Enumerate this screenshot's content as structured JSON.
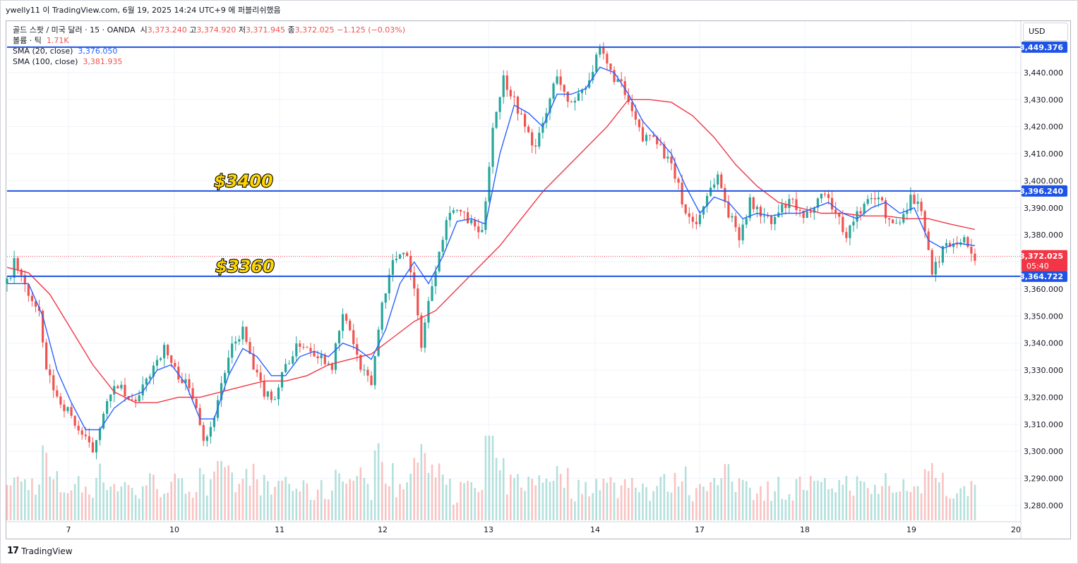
{
  "header": {
    "attribution": "ywelly11 이 TradingView.com, 6월 19, 2025 14:24 UTC+9 에 퍼블리쉬했음"
  },
  "legend": {
    "symbol": "골드 스팟 / 미국 달러 · 15 · OANDA",
    "open_label": "시",
    "open": "3,373.240",
    "high_label": "고",
    "high": "3,374.920",
    "low_label": "저",
    "low": "3,371.945",
    "close_label": "종",
    "close": "3,372.025",
    "change": "−1.125 (−0.03%)",
    "volume_label": "볼륨 · 틱",
    "volume": "1.71K",
    "sma20_label": "SMA (20, close)",
    "sma20_value": "3,376.050",
    "sma100_label": "SMA (100, close)",
    "sma100_value": "3,381.935"
  },
  "currency_button": "USD",
  "footer": {
    "brand": "TradingView"
  },
  "colors": {
    "up": "#26a69a",
    "down": "#ef5350",
    "sma20": "#2962ff",
    "sma100": "#f23645",
    "level_line": "#1e53e5",
    "current_price_tag": "#f23645",
    "level_tag": "#1e53e5",
    "annotation_fill": "#ffd600"
  },
  "chart_data": {
    "type": "candlestick",
    "instrument": "골드 스팟 / 미국 달러",
    "timeframe": "15",
    "ylim": [
      3274,
      3459
    ],
    "y_ticks": [
      3280,
      3290,
      3300,
      3310,
      3320,
      3330,
      3340,
      3350,
      3360,
      3370,
      3380,
      3390,
      3400,
      3410,
      3420,
      3430,
      3440
    ],
    "y_tick_labels": [
      "3,280.000",
      "3,290.000",
      "3,300.000",
      "3,310.000",
      "3,320.000",
      "3,330.000",
      "3,340.000",
      "3,350.000",
      "3,360.000",
      "3,370.000",
      "3,380.000",
      "3,390.000",
      "3,400.000",
      "3,410.000",
      "3,420.000",
      "3,430.000",
      "3,440.000"
    ],
    "x_ticks": [
      "7",
      "10",
      "11",
      "12",
      "13",
      "14",
      "17",
      "18",
      "19",
      "20"
    ],
    "horizontal_levels": [
      {
        "value": 3449.376,
        "label": "3,449.376"
      },
      {
        "value": 3396.24,
        "label": "3,396.240"
      },
      {
        "value": 3364.722,
        "label": "3,364.722"
      }
    ],
    "current_price": {
      "value": 3372.025,
      "label": "3,372.025",
      "countdown": "05:40"
    },
    "annotations": [
      {
        "text": "$3400",
        "price": 3396.24
      },
      {
        "text": "$3360",
        "price": 3364.722
      }
    ],
    "price_path": [
      [
        0,
        3362
      ],
      [
        2,
        3370
      ],
      [
        5,
        3361
      ],
      [
        9,
        3350
      ],
      [
        11,
        3330
      ],
      [
        14,
        3320
      ],
      [
        17,
        3315
      ],
      [
        20,
        3308
      ],
      [
        24,
        3300
      ],
      [
        27,
        3315
      ],
      [
        31,
        3325
      ],
      [
        34,
        3318
      ],
      [
        37,
        3320
      ],
      [
        41,
        3332
      ],
      [
        44,
        3338
      ],
      [
        47,
        3330
      ],
      [
        50,
        3325
      ],
      [
        53,
        3318
      ],
      [
        55,
        3305
      ],
      [
        57,
        3308
      ],
      [
        60,
        3325
      ],
      [
        63,
        3338
      ],
      [
        66,
        3345
      ],
      [
        69,
        3330
      ],
      [
        72,
        3322
      ],
      [
        75,
        3320
      ],
      [
        78,
        3332
      ],
      [
        82,
        3340
      ],
      [
        85,
        3338
      ],
      [
        88,
        3335
      ],
      [
        91,
        3332
      ],
      [
        94,
        3350
      ],
      [
        96,
        3345
      ],
      [
        99,
        3330
      ],
      [
        102,
        3325
      ],
      [
        105,
        3355
      ],
      [
        108,
        3370
      ],
      [
        111,
        3375
      ],
      [
        113,
        3368
      ],
      [
        116,
        3340
      ],
      [
        118,
        3355
      ],
      [
        121,
        3375
      ],
      [
        124,
        3390
      ],
      [
        127,
        3388
      ],
      [
        130,
        3384
      ],
      [
        133,
        3380
      ],
      [
        136,
        3420
      ],
      [
        139,
        3438
      ],
      [
        142,
        3430
      ],
      [
        145,
        3420
      ],
      [
        148,
        3412
      ],
      [
        151,
        3425
      ],
      [
        154,
        3440
      ],
      [
        157,
        3428
      ],
      [
        160,
        3432
      ],
      [
        163,
        3438
      ],
      [
        166,
        3448
      ],
      [
        169,
        3440
      ],
      [
        172,
        3435
      ],
      [
        175,
        3425
      ],
      [
        178,
        3415
      ],
      [
        181,
        3418
      ],
      [
        184,
        3410
      ],
      [
        187,
        3402
      ],
      [
        190,
        3388
      ],
      [
        193,
        3384
      ],
      [
        196,
        3395
      ],
      [
        199,
        3402
      ],
      [
        202,
        3388
      ],
      [
        205,
        3380
      ],
      [
        208,
        3392
      ],
      [
        211,
        3388
      ],
      [
        214,
        3384
      ],
      [
        217,
        3390
      ],
      [
        220,
        3392
      ],
      [
        223,
        3385
      ],
      [
        226,
        3392
      ],
      [
        229,
        3396
      ],
      [
        232,
        3388
      ],
      [
        235,
        3380
      ],
      [
        238,
        3388
      ],
      [
        241,
        3392
      ],
      [
        244,
        3395
      ],
      [
        247,
        3384
      ],
      [
        250,
        3385
      ],
      [
        253,
        3394
      ],
      [
        256,
        3390
      ],
      [
        259,
        3365
      ],
      [
        262,
        3375
      ],
      [
        265,
        3378
      ],
      [
        268,
        3378
      ],
      [
        271,
        3372
      ]
    ],
    "sma20_path": [
      [
        0,
        3362
      ],
      [
        6,
        3362
      ],
      [
        10,
        3350
      ],
      [
        14,
        3330
      ],
      [
        18,
        3318
      ],
      [
        22,
        3308
      ],
      [
        26,
        3308
      ],
      [
        30,
        3316
      ],
      [
        34,
        3320
      ],
      [
        38,
        3322
      ],
      [
        42,
        3330
      ],
      [
        46,
        3332
      ],
      [
        50,
        3325
      ],
      [
        54,
        3312
      ],
      [
        58,
        3312
      ],
      [
        62,
        3328
      ],
      [
        66,
        3338
      ],
      [
        70,
        3335
      ],
      [
        74,
        3328
      ],
      [
        78,
        3328
      ],
      [
        82,
        3335
      ],
      [
        86,
        3337
      ],
      [
        90,
        3335
      ],
      [
        94,
        3340
      ],
      [
        98,
        3338
      ],
      [
        102,
        3334
      ],
      [
        106,
        3345
      ],
      [
        110,
        3362
      ],
      [
        114,
        3370
      ],
      [
        118,
        3362
      ],
      [
        122,
        3372
      ],
      [
        126,
        3385
      ],
      [
        130,
        3386
      ],
      [
        134,
        3384
      ],
      [
        138,
        3410
      ],
      [
        142,
        3428
      ],
      [
        146,
        3425
      ],
      [
        150,
        3420
      ],
      [
        154,
        3432
      ],
      [
        158,
        3432
      ],
      [
        162,
        3434
      ],
      [
        166,
        3442
      ],
      [
        170,
        3440
      ],
      [
        174,
        3432
      ],
      [
        178,
        3422
      ],
      [
        182,
        3416
      ],
      [
        186,
        3410
      ],
      [
        190,
        3398
      ],
      [
        194,
        3388
      ],
      [
        198,
        3394
      ],
      [
        202,
        3392
      ],
      [
        206,
        3386
      ],
      [
        210,
        3388
      ],
      [
        214,
        3387
      ],
      [
        218,
        3388
      ],
      [
        222,
        3388
      ],
      [
        226,
        3390
      ],
      [
        230,
        3392
      ],
      [
        234,
        3388
      ],
      [
        238,
        3386
      ],
      [
        242,
        3390
      ],
      [
        246,
        3392
      ],
      [
        250,
        3388
      ],
      [
        254,
        3390
      ],
      [
        258,
        3378
      ],
      [
        262,
        3375
      ],
      [
        266,
        3377
      ],
      [
        271,
        3376
      ]
    ],
    "sma100_path": [
      [
        0,
        3368
      ],
      [
        6,
        3366
      ],
      [
        12,
        3358
      ],
      [
        18,
        3345
      ],
      [
        24,
        3332
      ],
      [
        30,
        3322
      ],
      [
        36,
        3318
      ],
      [
        42,
        3318
      ],
      [
        48,
        3320
      ],
      [
        54,
        3320
      ],
      [
        60,
        3322
      ],
      [
        66,
        3324
      ],
      [
        72,
        3326
      ],
      [
        78,
        3326
      ],
      [
        84,
        3328
      ],
      [
        90,
        3332
      ],
      [
        96,
        3334
      ],
      [
        102,
        3336
      ],
      [
        108,
        3342
      ],
      [
        114,
        3348
      ],
      [
        120,
        3352
      ],
      [
        126,
        3360
      ],
      [
        132,
        3368
      ],
      [
        138,
        3376
      ],
      [
        144,
        3386
      ],
      [
        150,
        3396
      ],
      [
        156,
        3404
      ],
      [
        162,
        3412
      ],
      [
        168,
        3420
      ],
      [
        174,
        3430
      ],
      [
        180,
        3430
      ],
      [
        186,
        3429
      ],
      [
        192,
        3424
      ],
      [
        198,
        3416
      ],
      [
        204,
        3406
      ],
      [
        210,
        3398
      ],
      [
        216,
        3392
      ],
      [
        222,
        3390
      ],
      [
        228,
        3388
      ],
      [
        234,
        3388
      ],
      [
        240,
        3387
      ],
      [
        246,
        3387
      ],
      [
        252,
        3386
      ],
      [
        258,
        3386
      ],
      [
        264,
        3384
      ],
      [
        271,
        3382
      ]
    ]
  }
}
